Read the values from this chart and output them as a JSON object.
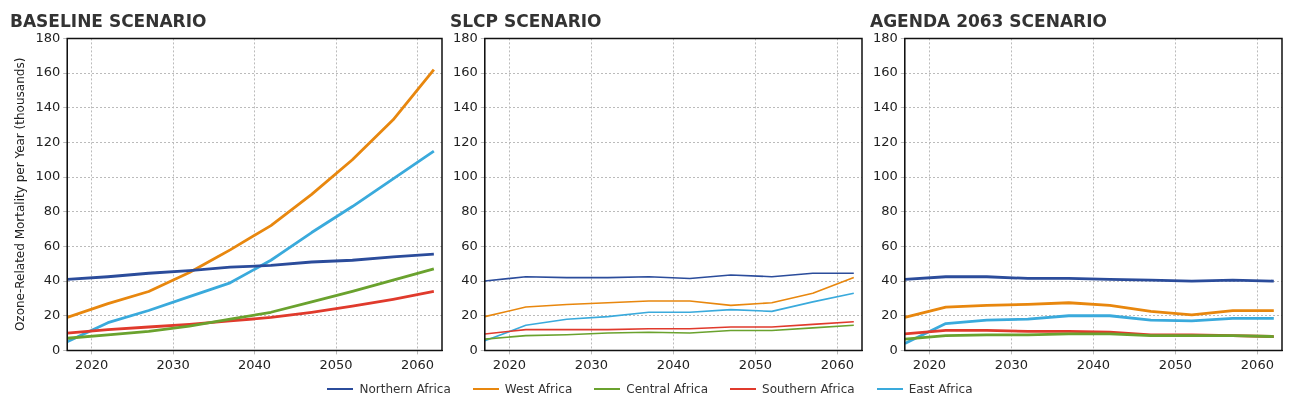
{
  "chart_data": [
    {
      "type": "line",
      "title": "BASELINE SCENARIO",
      "ylabel": "Ozone-Related Mortality per Year (thousands)",
      "x": [
        2017,
        2022,
        2027,
        2032,
        2037,
        2042,
        2047,
        2052,
        2057,
        2062
      ],
      "xlim": [
        2017,
        2063
      ],
      "xticks": [
        2020,
        2030,
        2040,
        2050,
        2060
      ],
      "ylim": [
        0,
        180
      ],
      "yticks": [
        0,
        20,
        40,
        60,
        80,
        100,
        120,
        140,
        160,
        180
      ],
      "grid": true,
      "marker": "none",
      "line_style": "solid",
      "series": [
        {
          "color": "#2b4c9b",
          "values": [
            41,
            42.5,
            44.5,
            46,
            48,
            49,
            51,
            52,
            54,
            55.5
          ]
        },
        {
          "color": "#e8870e",
          "values": [
            19,
            27,
            34,
            45,
            58,
            72,
            90,
            110,
            133,
            162
          ]
        },
        {
          "color": "#6aa22e",
          "values": [
            7,
            9,
            11,
            14,
            18,
            22,
            28,
            34,
            40.5,
            47
          ]
        },
        {
          "color": "#e03a2c",
          "values": [
            10,
            12,
            13.5,
            15,
            17,
            19,
            22,
            25.5,
            29.5,
            34
          ]
        },
        {
          "color": "#3aaadc",
          "values": [
            5,
            16,
            23,
            31,
            39,
            52,
            68,
            83,
            99,
            115
          ]
        }
      ]
    },
    {
      "type": "line",
      "title": "SLCP SCENARIO",
      "x": [
        2017,
        2022,
        2027,
        2032,
        2037,
        2042,
        2047,
        2052,
        2057,
        2062
      ],
      "xlim": [
        2017,
        2063
      ],
      "xticks": [
        2020,
        2030,
        2040,
        2050,
        2060
      ],
      "ylim": [
        0,
        180
      ],
      "yticks": [
        0,
        20,
        40,
        60,
        80,
        100,
        120,
        140,
        160,
        180
      ],
      "grid": true,
      "marker": "none",
      "line_style": "solid",
      "legend": "bottom",
      "series": [
        {
          "name": "Northern Africa",
          "color": "#2b4c9b",
          "values": [
            40,
            42.5,
            42,
            42,
            42.5,
            41.5,
            43.5,
            42.5,
            44.5,
            44.5
          ]
        },
        {
          "name": "West Africa",
          "color": "#e8870e",
          "values": [
            19.5,
            25,
            26.5,
            27.5,
            28.5,
            28.5,
            26,
            27.5,
            33,
            42
          ]
        },
        {
          "name": "Central Africa",
          "color": "#6aa22e",
          "values": [
            6.5,
            8.5,
            9,
            10,
            10.5,
            10,
            11.5,
            11.5,
            13,
            14.5
          ]
        },
        {
          "name": "Southern Africa",
          "color": "#e03a2c",
          "values": [
            9.5,
            12,
            12,
            12,
            12.5,
            12.5,
            13.5,
            13.5,
            15,
            16.5
          ]
        },
        {
          "name": "East Africa",
          "color": "#3aaadc",
          "values": [
            5.5,
            14.5,
            18,
            19.5,
            22,
            22,
            23.5,
            22.5,
            28,
            33
          ]
        }
      ]
    },
    {
      "type": "line",
      "title": "AGENDA 2063 SCENARIO",
      "x": [
        2017,
        2022,
        2027,
        2032,
        2037,
        2042,
        2047,
        2052,
        2057,
        2062
      ],
      "xlim": [
        2017,
        2063
      ],
      "xticks": [
        2020,
        2030,
        2040,
        2050,
        2060
      ],
      "ylim": [
        0,
        180
      ],
      "yticks": [
        0,
        20,
        40,
        60,
        80,
        100,
        120,
        140,
        160,
        180
      ],
      "grid": true,
      "marker": "none",
      "line_style": "solid",
      "series": [
        {
          "color": "#2b4c9b",
          "values": [
            41,
            42.5,
            42.5,
            41.5,
            41.5,
            41,
            40.5,
            40,
            40.5,
            40
          ]
        },
        {
          "color": "#e8870e",
          "values": [
            19,
            25,
            26,
            26.5,
            27.5,
            26,
            22.5,
            20.5,
            23,
            23
          ]
        },
        {
          "color": "#6aa22e",
          "values": [
            6.5,
            8.5,
            9,
            9,
            9.5,
            9.5,
            8.5,
            8.5,
            8.5,
            8
          ]
        },
        {
          "color": "#e03a2c",
          "values": [
            9.5,
            11.5,
            11.5,
            11,
            11,
            10.5,
            9,
            9,
            8.5,
            8
          ]
        },
        {
          "color": "#3aaadc",
          "values": [
            4,
            15.5,
            17.5,
            18,
            20,
            20,
            17.5,
            17,
            18.5,
            18.5
          ]
        }
      ]
    }
  ]
}
